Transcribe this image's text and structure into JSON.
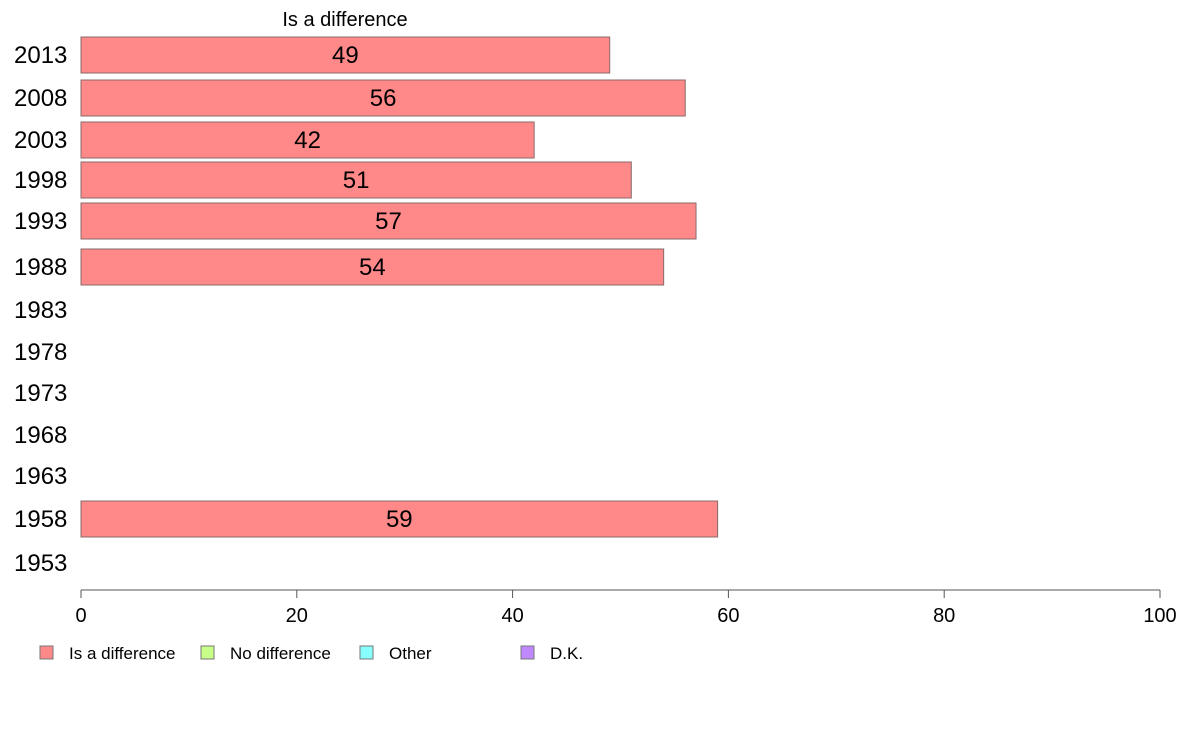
{
  "chart_data": {
    "type": "bar",
    "orientation": "horizontal",
    "title": "Is a difference",
    "categories": [
      "2013",
      "2008",
      "2003",
      "1998",
      "1993",
      "1988",
      "1983",
      "1978",
      "1973",
      "1968",
      "1963",
      "1958",
      "1953"
    ],
    "series": [
      {
        "name": "Is a difference",
        "color": "#ff8888",
        "values": [
          49,
          56,
          42,
          51,
          57,
          54,
          null,
          null,
          null,
          null,
          null,
          59,
          null
        ]
      }
    ],
    "data_labels": [
      "49",
      "56",
      "42",
      "51",
      "57",
      "54",
      "",
      "",
      "",
      "",
      "",
      "59",
      ""
    ],
    "xlim": [
      0,
      100
    ],
    "xticks": [
      "0",
      "20",
      "40",
      "60",
      "80",
      "100"
    ],
    "grid": false,
    "legend_position": "bottom-left",
    "legend": [
      {
        "label": "Is a difference",
        "color": "#ff8888"
      },
      {
        "label": "No difference",
        "color": "#c8ff88"
      },
      {
        "label": "Other",
        "color": "#88ffff"
      },
      {
        "label": "D.K.",
        "color": "#c088ff"
      }
    ]
  }
}
